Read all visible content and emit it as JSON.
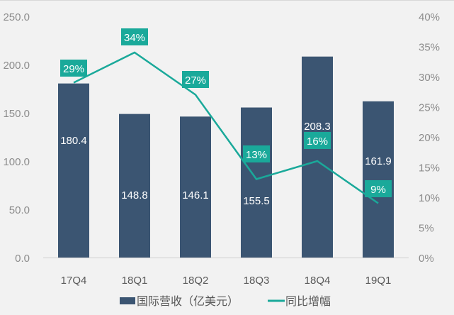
{
  "chart_data": {
    "type": "bar+line",
    "categories": [
      "17Q4",
      "18Q1",
      "18Q2",
      "18Q3",
      "18Q4",
      "19Q1"
    ],
    "series": [
      {
        "name": "国际营收（亿美元）",
        "type": "bar",
        "axis": "left",
        "values": [
          180.4,
          148.8,
          146.1,
          155.5,
          208.3,
          161.9
        ],
        "labels": [
          "180.4",
          "148.8",
          "146.1",
          "155.5",
          "208.3",
          "161.9"
        ],
        "color": "#3b5572"
      },
      {
        "name": "同比增幅",
        "type": "line",
        "axis": "right",
        "values": [
          29,
          34,
          27,
          13,
          16,
          9
        ],
        "labels": [
          "29%",
          "34%",
          "27%",
          "13%",
          "16%",
          "9%"
        ],
        "color": "#1aa99a"
      }
    ],
    "left_axis": {
      "ylim": [
        0,
        250
      ],
      "ticks": [
        "0.0",
        "50.0",
        "100.0",
        "150.0",
        "200.0",
        "250.0"
      ]
    },
    "right_axis": {
      "ylim": [
        0,
        40
      ],
      "ticks": [
        "0%",
        "5%",
        "10%",
        "15%",
        "20%",
        "25%",
        "30%",
        "35%",
        "40%"
      ]
    },
    "grid": false,
    "legend_position": "bottom"
  }
}
